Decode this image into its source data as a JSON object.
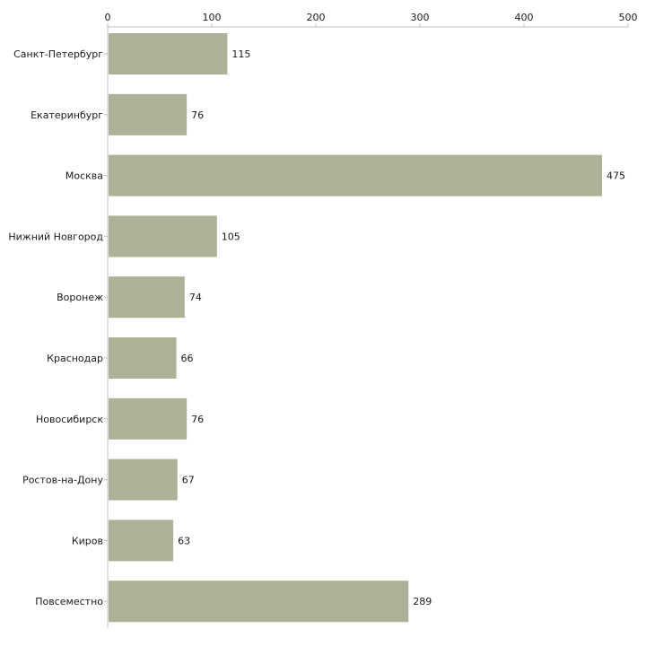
{
  "chart_data": {
    "type": "bar",
    "orientation": "horizontal",
    "title": "",
    "xlabel": "",
    "ylabel": "",
    "xlim": [
      0,
      500
    ],
    "xticks": [
      0,
      100,
      200,
      300,
      400,
      500
    ],
    "tick_axis_position": "top",
    "grid": false,
    "categories": [
      "Санкт-Петербург",
      "Екатеринбург",
      "Москва",
      "Нижний Новгород",
      "Воронеж",
      "Краснодар",
      "Новосибирск",
      "Ростов-на-Дону",
      "Киров",
      "Повсеместно"
    ],
    "values": [
      115,
      76,
      475,
      105,
      74,
      66,
      76,
      67,
      63,
      289
    ],
    "bar_color": "#adb198",
    "axis_color": "#bfbfbf",
    "text_color": "#1a1a1a"
  }
}
